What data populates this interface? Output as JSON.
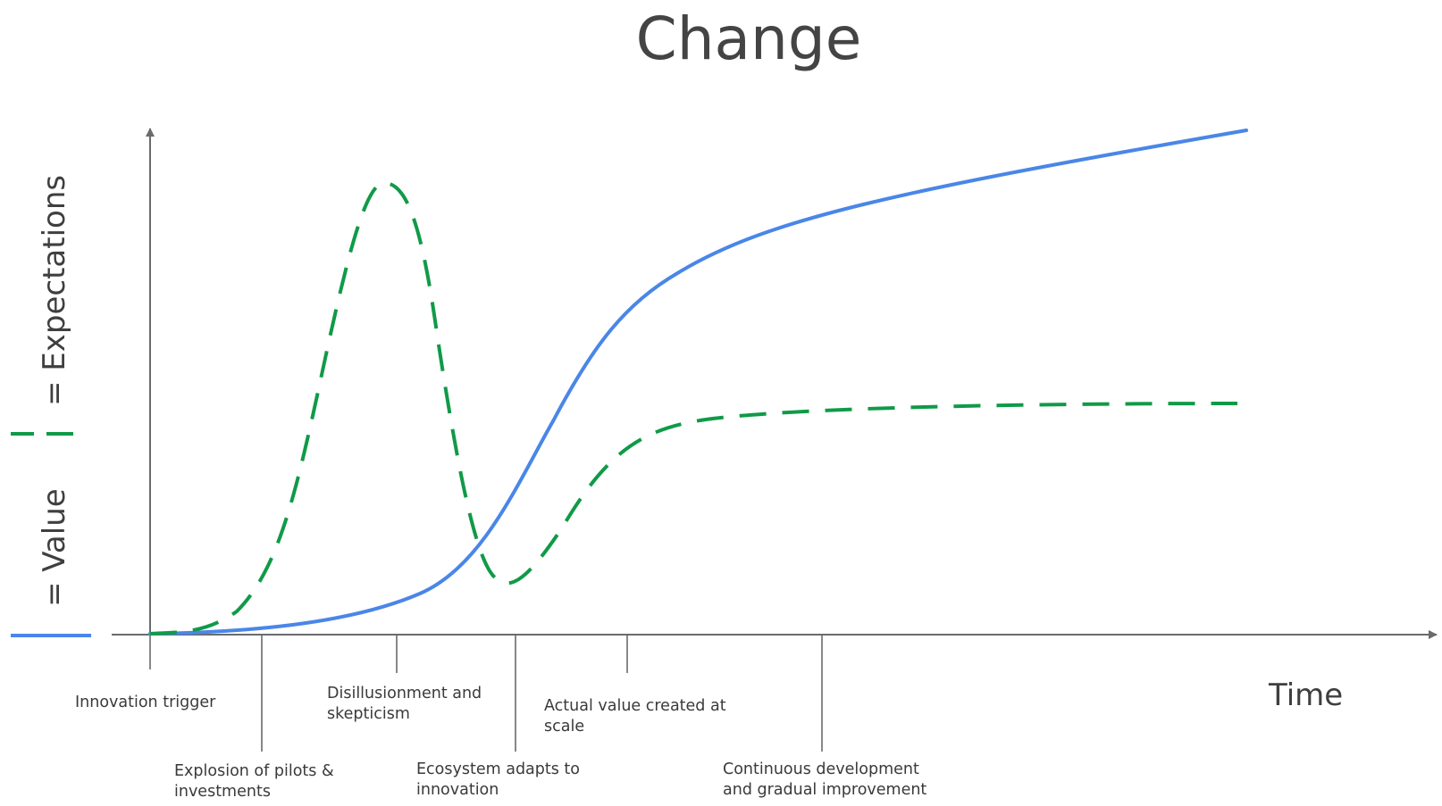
{
  "title": "Change",
  "x_axis_label": "Time",
  "legend": {
    "value_label": "= Value",
    "expectations_label": "= Expectations"
  },
  "stages": [
    {
      "line1": "Innovation trigger",
      "line2": ""
    },
    {
      "line1": "Explosion of pilots &",
      "line2": "investments"
    },
    {
      "line1": "Disillusionment and",
      "line2": "skepticism"
    },
    {
      "line1": "Ecosystem adapts to",
      "line2": "innovation"
    },
    {
      "line1": "Actual value created at",
      "line2": "scale"
    },
    {
      "line1": "Continuous development",
      "line2": "and gradual improvement"
    }
  ],
  "colors": {
    "value_line": "#4A86E8",
    "expectations_line": "#109A48",
    "axis": "#6b6b6b",
    "text": "#3a3a3a"
  }
}
